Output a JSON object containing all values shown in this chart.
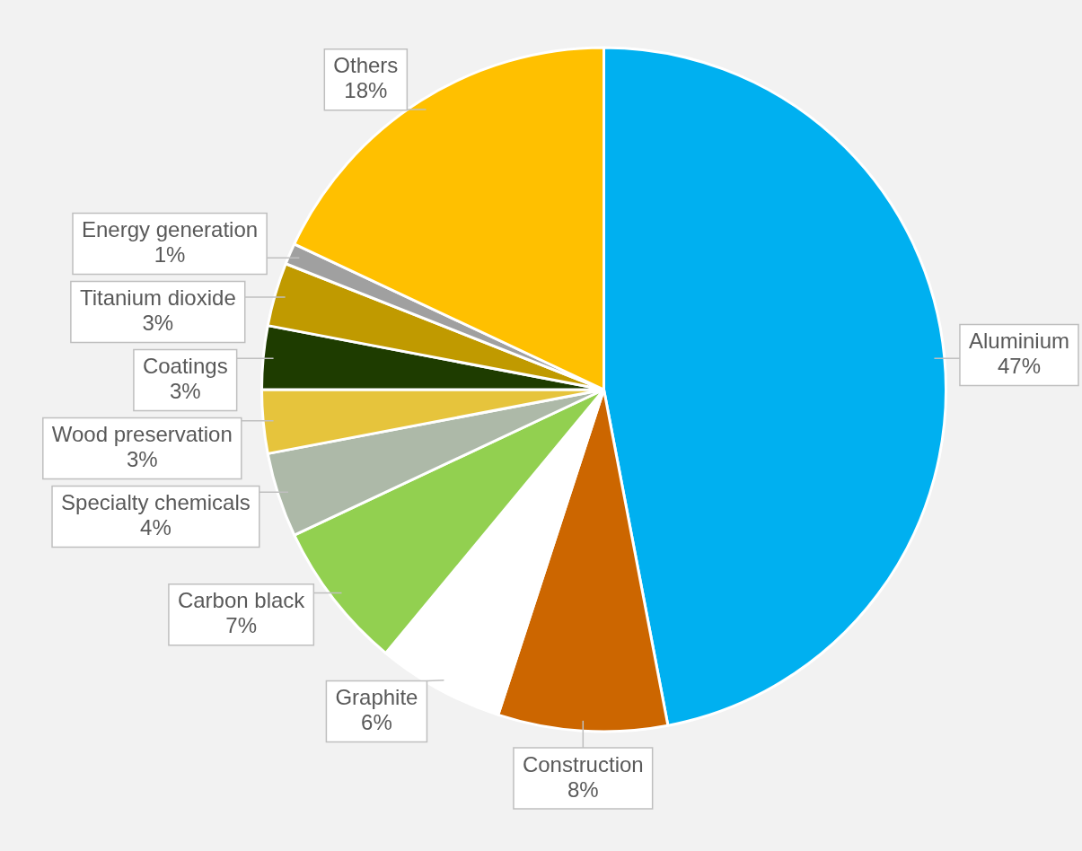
{
  "chart_data": {
    "type": "pie",
    "categories": [
      "Aluminium",
      "Construction",
      "Graphite",
      "Carbon black",
      "Specialty chemicals",
      "Wood preservation",
      "Coatings",
      "Titanium dioxide",
      "Energy generation",
      "Others"
    ],
    "values": [
      47,
      8,
      6,
      7,
      4,
      3,
      3,
      3,
      1,
      18
    ],
    "colors": [
      "#00b0f0",
      "#cc6600",
      "#ffffff",
      "#92d050",
      "#adb9a8",
      "#e6c43c",
      "#1e3c00",
      "#c09a00",
      "#a0a0a0",
      "#ffc000"
    ],
    "value_labels": [
      "47%",
      "8%",
      "6%",
      "7%",
      "4%",
      "3%",
      "3%",
      "3%",
      "1%",
      "18%"
    ]
  }
}
